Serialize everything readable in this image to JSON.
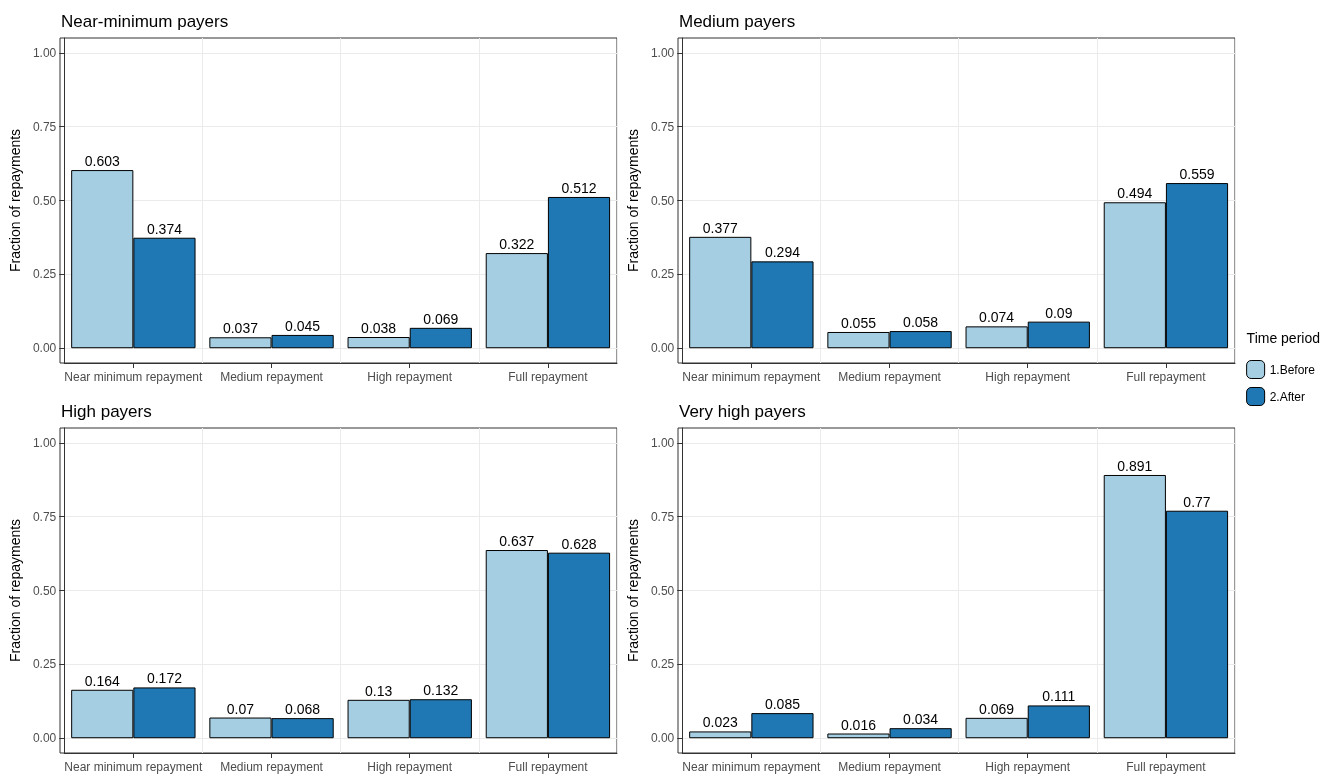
{
  "chart_data": [
    {
      "type": "bar",
      "title": "Near-minimum payers",
      "ylabel": "Fraction of repayments",
      "categories": [
        "Near minimum repayment",
        "Medium repayment",
        "High repayment",
        "Full repayment"
      ],
      "series": [
        {
          "color": "#a6cee3",
          "values": [
            0.603,
            0.037,
            0.038,
            0.322
          ]
        },
        {
          "color": "#1f78b4",
          "values": [
            0.374,
            0.045,
            0.069,
            0.512
          ]
        }
      ],
      "ylim": [
        -0.05,
        1.05
      ],
      "yticks": [
        {
          "value": 0,
          "label": "0.00"
        },
        {
          "value": 0.25,
          "label": "0.25"
        },
        {
          "value": 0.5,
          "label": "0.50"
        },
        {
          "value": 0.75,
          "label": "0.75"
        },
        {
          "value": 1,
          "label": "1.00"
        }
      ],
      "grid": true,
      "data_labels": true,
      "legend": false
    },
    {
      "type": "bar",
      "title": "Medium payers",
      "ylabel": "Fraction of repayments",
      "categories": [
        "Near minimum repayment",
        "Medium repayment",
        "High repayment",
        "Full repayment"
      ],
      "series": [
        {
          "name": "1.Before",
          "color": "#a6cee3",
          "values": [
            0.377,
            0.055,
            0.074,
            0.494
          ]
        },
        {
          "name": "2.After",
          "color": "#1f78b4",
          "values": [
            0.294,
            0.058,
            0.09,
            0.559
          ]
        }
      ],
      "ylim": [
        -0.05,
        1.05
      ],
      "yticks": [
        {
          "value": 0,
          "label": "0.00"
        },
        {
          "value": 0.25,
          "label": "0.25"
        },
        {
          "value": 0.5,
          "label": "0.50"
        },
        {
          "value": 0.75,
          "label": "0.75"
        },
        {
          "value": 1,
          "label": "1.00"
        }
      ],
      "grid": true,
      "data_labels": true,
      "legend": "right",
      "legend_title": "Time period"
    },
    {
      "type": "bar",
      "title": "High payers",
      "ylabel": "Fraction of repayments",
      "categories": [
        "Near minimum repayment",
        "Medium repayment",
        "High repayment",
        "Full repayment"
      ],
      "series": [
        {
          "color": "#a6cee3",
          "values": [
            0.164,
            0.07,
            0.13,
            0.637
          ]
        },
        {
          "color": "#1f78b4",
          "values": [
            0.172,
            0.068,
            0.132,
            0.628
          ]
        }
      ],
      "ylim": [
        -0.05,
        1.05
      ],
      "yticks": [
        {
          "value": 0,
          "label": "0.00"
        },
        {
          "value": 0.25,
          "label": "0.25"
        },
        {
          "value": 0.5,
          "label": "0.50"
        },
        {
          "value": 0.75,
          "label": "0.75"
        },
        {
          "value": 1,
          "label": "1.00"
        }
      ],
      "grid": true,
      "data_labels": true,
      "legend": false
    },
    {
      "type": "bar",
      "title": "Very high payers",
      "ylabel": "Fraction of repayments",
      "categories": [
        "Near minimum repayment",
        "Medium repayment",
        "High repayment",
        "Full repayment"
      ],
      "series": [
        {
          "color": "#a6cee3",
          "values": [
            0.023,
            0.016,
            0.069,
            0.891
          ]
        },
        {
          "color": "#1f78b4",
          "values": [
            0.085,
            0.034,
            0.111,
            0.77
          ]
        }
      ],
      "ylim": [
        -0.05,
        1.05
      ],
      "yticks": [
        {
          "value": 0,
          "label": "0.00"
        },
        {
          "value": 0.25,
          "label": "0.25"
        },
        {
          "value": 0.5,
          "label": "0.50"
        },
        {
          "value": 0.75,
          "label": "0.75"
        },
        {
          "value": 1,
          "label": "1.00"
        }
      ],
      "grid": true,
      "data_labels": true,
      "legend": false
    }
  ]
}
